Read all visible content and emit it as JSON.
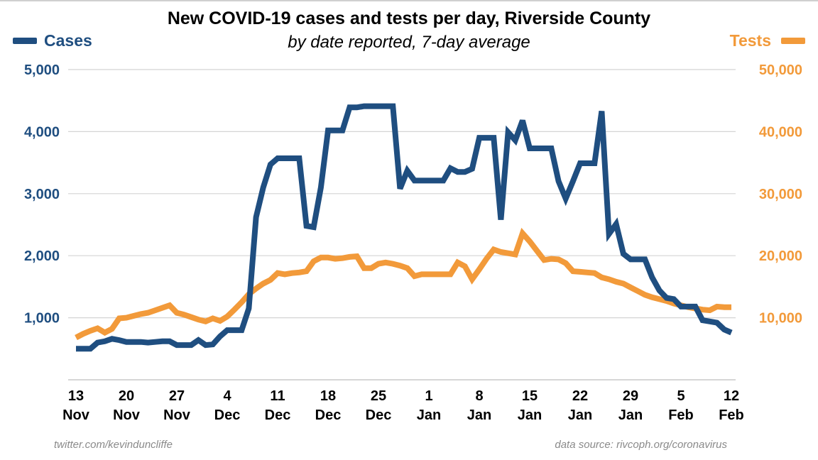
{
  "chart_data": {
    "type": "line",
    "title": "New COVID-19 cases and tests per day, Riverside County",
    "subtitle": "by date reported, 7-day average",
    "legend_left": "Cases",
    "legend_right": "Tests",
    "y_left": {
      "min": 0,
      "max": 5000,
      "ticks": [
        "1,000",
        "2,000",
        "3,000",
        "4,000",
        "5,000"
      ],
      "tick_values": [
        1000,
        2000,
        3000,
        4000,
        5000
      ]
    },
    "y_right": {
      "min": 0,
      "max": 50000,
      "ticks": [
        "10,000",
        "20,000",
        "30,000",
        "40,000",
        "50,000"
      ],
      "tick_values": [
        10000,
        20000,
        30000,
        40000,
        50000
      ]
    },
    "x_ticks": [
      {
        "day": 0,
        "top": "13",
        "bottom": "Nov"
      },
      {
        "day": 7,
        "top": "20",
        "bottom": "Nov"
      },
      {
        "day": 14,
        "top": "27",
        "bottom": "Nov"
      },
      {
        "day": 21,
        "top": "4",
        "bottom": "Dec"
      },
      {
        "day": 28,
        "top": "11",
        "bottom": "Dec"
      },
      {
        "day": 35,
        "top": "18",
        "bottom": "Dec"
      },
      {
        "day": 42,
        "top": "25",
        "bottom": "Dec"
      },
      {
        "day": 49,
        "top": "1",
        "bottom": "Jan"
      },
      {
        "day": 56,
        "top": "8",
        "bottom": "Jan"
      },
      {
        "day": 63,
        "top": "15",
        "bottom": "Jan"
      },
      {
        "day": 70,
        "top": "22",
        "bottom": "Jan"
      },
      {
        "day": 77,
        "top": "29",
        "bottom": "Jan"
      },
      {
        "day": 84,
        "top": "5",
        "bottom": "Feb"
      },
      {
        "day": 91,
        "top": "12",
        "bottom": "Feb"
      }
    ],
    "x_range": [
      0,
      91
    ],
    "series": [
      {
        "name": "Cases",
        "axis": "left",
        "color": "#1f4e80",
        "points": [
          [
            0,
            500
          ],
          [
            2,
            500
          ],
          [
            3,
            600
          ],
          [
            4,
            620
          ],
          [
            5,
            660
          ],
          [
            6,
            640
          ],
          [
            7,
            610
          ],
          [
            8,
            610
          ],
          [
            9,
            610
          ],
          [
            10,
            600
          ],
          [
            11,
            610
          ],
          [
            12,
            620
          ],
          [
            13,
            620
          ],
          [
            14,
            560
          ],
          [
            15,
            560
          ],
          [
            16,
            560
          ],
          [
            17,
            640
          ],
          [
            18,
            560
          ],
          [
            19,
            570
          ],
          [
            20,
            700
          ],
          [
            21,
            800
          ],
          [
            22,
            800
          ],
          [
            23,
            800
          ],
          [
            24,
            1150
          ],
          [
            25,
            2620
          ],
          [
            26,
            3100
          ],
          [
            27,
            3470
          ],
          [
            28,
            3570
          ],
          [
            29,
            3570
          ],
          [
            30,
            3570
          ],
          [
            31,
            3570
          ],
          [
            32,
            2480
          ],
          [
            33,
            2460
          ],
          [
            34,
            3100
          ],
          [
            35,
            4020
          ],
          [
            36,
            4020
          ],
          [
            37,
            4020
          ],
          [
            38,
            4390
          ],
          [
            39,
            4390
          ],
          [
            40,
            4410
          ],
          [
            41,
            4410
          ],
          [
            42,
            4410
          ],
          [
            43,
            4410
          ],
          [
            44,
            4410
          ],
          [
            45,
            3080
          ],
          [
            46,
            3370
          ],
          [
            47,
            3210
          ],
          [
            48,
            3210
          ],
          [
            49,
            3210
          ],
          [
            50,
            3210
          ],
          [
            51,
            3210
          ],
          [
            52,
            3410
          ],
          [
            53,
            3350
          ],
          [
            54,
            3350
          ],
          [
            55,
            3400
          ],
          [
            56,
            3900
          ],
          [
            57,
            3900
          ],
          [
            58,
            3900
          ],
          [
            59,
            2580
          ],
          [
            60,
            3990
          ],
          [
            61,
            3860
          ],
          [
            62,
            4180
          ],
          [
            63,
            3730
          ],
          [
            64,
            3730
          ],
          [
            65,
            3730
          ],
          [
            66,
            3730
          ],
          [
            67,
            3200
          ],
          [
            68,
            2920
          ],
          [
            69,
            3200
          ],
          [
            70,
            3490
          ],
          [
            71,
            3490
          ],
          [
            72,
            3490
          ],
          [
            73,
            4330
          ],
          [
            74,
            2350
          ],
          [
            75,
            2510
          ],
          [
            76,
            2030
          ],
          [
            77,
            1940
          ],
          [
            78,
            1940
          ],
          [
            79,
            1940
          ],
          [
            80,
            1650
          ],
          [
            81,
            1440
          ],
          [
            82,
            1320
          ],
          [
            83,
            1300
          ],
          [
            84,
            1180
          ],
          [
            85,
            1180
          ],
          [
            86,
            1180
          ],
          [
            87,
            960
          ],
          [
            88,
            940
          ],
          [
            89,
            920
          ],
          [
            90,
            810
          ],
          [
            91,
            760
          ]
        ]
      },
      {
        "name": "Tests",
        "axis": "right",
        "color": "#f29a3a",
        "points": [
          [
            0,
            6800
          ],
          [
            1,
            7400
          ],
          [
            2,
            7900
          ],
          [
            3,
            8300
          ],
          [
            4,
            7600
          ],
          [
            5,
            8200
          ],
          [
            6,
            9900
          ],
          [
            7,
            10000
          ],
          [
            8,
            10300
          ],
          [
            9,
            10600
          ],
          [
            10,
            10800
          ],
          [
            11,
            11200
          ],
          [
            12,
            11600
          ],
          [
            13,
            12000
          ],
          [
            14,
            10800
          ],
          [
            15,
            10500
          ],
          [
            16,
            10100
          ],
          [
            17,
            9700
          ],
          [
            18,
            9400
          ],
          [
            19,
            9900
          ],
          [
            20,
            9500
          ],
          [
            21,
            10200
          ],
          [
            22,
            11300
          ],
          [
            23,
            12500
          ],
          [
            24,
            13800
          ],
          [
            25,
            14700
          ],
          [
            26,
            15500
          ],
          [
            27,
            16100
          ],
          [
            28,
            17200
          ],
          [
            29,
            17000
          ],
          [
            30,
            17200
          ],
          [
            31,
            17300
          ],
          [
            32,
            17500
          ],
          [
            33,
            19100
          ],
          [
            34,
            19700
          ],
          [
            35,
            19700
          ],
          [
            36,
            19500
          ],
          [
            37,
            19600
          ],
          [
            38,
            19800
          ],
          [
            39,
            19900
          ],
          [
            40,
            18000
          ],
          [
            41,
            18000
          ],
          [
            42,
            18700
          ],
          [
            43,
            18900
          ],
          [
            44,
            18700
          ],
          [
            45,
            18400
          ],
          [
            46,
            18000
          ],
          [
            47,
            16700
          ],
          [
            48,
            17000
          ],
          [
            49,
            17000
          ],
          [
            50,
            17000
          ],
          [
            51,
            17000
          ],
          [
            52,
            17000
          ],
          [
            53,
            18900
          ],
          [
            54,
            18300
          ],
          [
            55,
            16200
          ],
          [
            56,
            17800
          ],
          [
            57,
            19500
          ],
          [
            58,
            21000
          ],
          [
            59,
            20600
          ],
          [
            60,
            20400
          ],
          [
            61,
            20200
          ],
          [
            62,
            23600
          ],
          [
            63,
            22300
          ],
          [
            64,
            20800
          ],
          [
            65,
            19300
          ],
          [
            66,
            19500
          ],
          [
            67,
            19400
          ],
          [
            68,
            18800
          ],
          [
            69,
            17500
          ],
          [
            70,
            17400
          ],
          [
            71,
            17300
          ],
          [
            72,
            17200
          ],
          [
            73,
            16500
          ],
          [
            74,
            16200
          ],
          [
            75,
            15800
          ],
          [
            76,
            15500
          ],
          [
            77,
            14900
          ],
          [
            78,
            14300
          ],
          [
            79,
            13700
          ],
          [
            80,
            13300
          ],
          [
            81,
            13000
          ],
          [
            82,
            12700
          ],
          [
            83,
            12300
          ],
          [
            84,
            12000
          ],
          [
            85,
            11700
          ],
          [
            86,
            11500
          ],
          [
            87,
            11300
          ],
          [
            88,
            11200
          ],
          [
            89,
            11800
          ],
          [
            90,
            11700
          ],
          [
            91,
            11700
          ]
        ]
      }
    ]
  },
  "footer": {
    "credit": "twitter.com/kevinduncliffe",
    "source": "data source: rivcoph.org/coronavirus"
  }
}
